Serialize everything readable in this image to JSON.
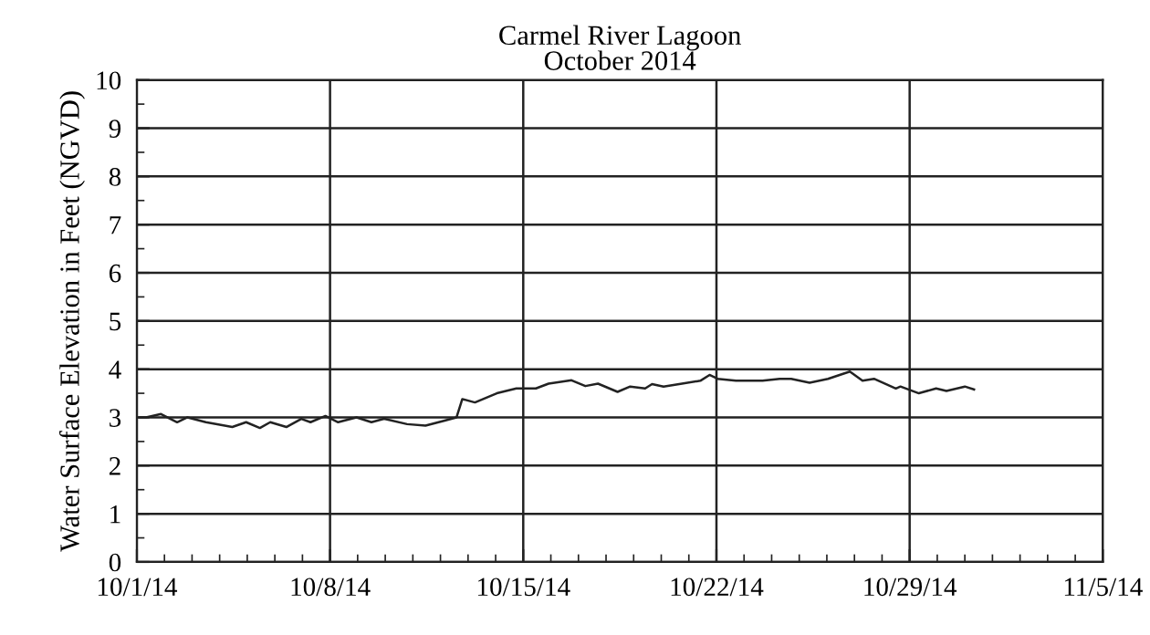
{
  "chart_data": {
    "type": "line",
    "title": "Carmel River Lagoon\nOctober 2014",
    "ylabel": "Water Surface Elevation in Feet (NGVD)",
    "x": [
      "2014-10-01T03:00",
      "2014-10-01T08:00",
      "2014-10-01T21:00",
      "2014-10-02T11:00",
      "2014-10-02T20:00",
      "2014-10-03T12:00",
      "2014-10-04T11:00",
      "2014-10-04T23:00",
      "2014-10-05T11:00",
      "2014-10-05T20:00",
      "2014-10-06T10:00",
      "2014-10-06T23:00",
      "2014-10-07T07:00",
      "2014-10-07T20:00",
      "2014-10-08T07:00",
      "2014-10-08T23:00",
      "2014-10-09T12:00",
      "2014-10-09T23:00",
      "2014-10-10T19:00",
      "2014-10-11T11:00",
      "2014-10-12T03:00",
      "2014-10-12T14:00",
      "2014-10-12T19:00",
      "2014-10-13T06:00",
      "2014-10-14T01:00",
      "2014-10-14T18:00",
      "2014-10-15T11:00",
      "2014-10-15T22:00",
      "2014-10-16T18:00",
      "2014-10-17T06:00",
      "2014-10-17T17:00",
      "2014-10-18T10:00",
      "2014-10-18T21:00",
      "2014-10-19T10:00",
      "2014-10-19T16:00",
      "2014-10-20T02:00",
      "2014-10-20T18:00",
      "2014-10-21T10:00",
      "2014-10-21T18:00",
      "2014-10-22T01:00",
      "2014-10-22T17:00",
      "2014-10-23T16:00",
      "2014-10-24T07:00",
      "2014-10-24T17:00",
      "2014-10-25T09:00",
      "2014-10-26T01:00",
      "2014-10-26T20:00",
      "2014-10-27T07:00",
      "2014-10-27T17:00",
      "2014-10-28T12:00",
      "2014-10-28T16:00",
      "2014-10-29T08:00",
      "2014-10-29T23:00",
      "2014-10-30T08:00",
      "2014-10-31T00:00",
      "2014-10-31T08:00"
    ],
    "series": [
      {
        "color": "#222222",
        "values": [
          3.0,
          3.0,
          3.07,
          2.9,
          3.0,
          2.9,
          2.8,
          2.9,
          2.78,
          2.9,
          2.8,
          2.97,
          2.9,
          3.03,
          2.9,
          3.0,
          2.9,
          2.97,
          2.86,
          2.83,
          2.93,
          3.0,
          3.38,
          3.31,
          3.5,
          3.6,
          3.6,
          3.7,
          3.77,
          3.65,
          3.7,
          3.53,
          3.64,
          3.6,
          3.69,
          3.64,
          3.7,
          3.76,
          3.88,
          3.8,
          3.76,
          3.76,
          3.8,
          3.8,
          3.72,
          3.8,
          3.95,
          3.76,
          3.8,
          3.6,
          3.64,
          3.5,
          3.6,
          3.55,
          3.64,
          3.58
        ]
      }
    ],
    "xlim": [
      "2014-10-01",
      "2014-11-05"
    ],
    "xticks": [
      {
        "value": "2014-10-01",
        "label": "10/1/14"
      },
      {
        "value": "2014-10-08",
        "label": "10/8/14"
      },
      {
        "value": "2014-10-15",
        "label": "10/15/14"
      },
      {
        "value": "2014-10-22",
        "label": "10/22/14"
      },
      {
        "value": "2014-10-29",
        "label": "10/29/14"
      },
      {
        "value": "2014-11-05",
        "label": "11/5/14"
      }
    ],
    "ylim": [
      0,
      10
    ],
    "yticks": [
      0,
      1,
      2,
      3,
      4,
      5,
      6,
      7,
      8,
      9,
      10
    ],
    "grid": true,
    "line_style": "solid",
    "marker": "none"
  }
}
